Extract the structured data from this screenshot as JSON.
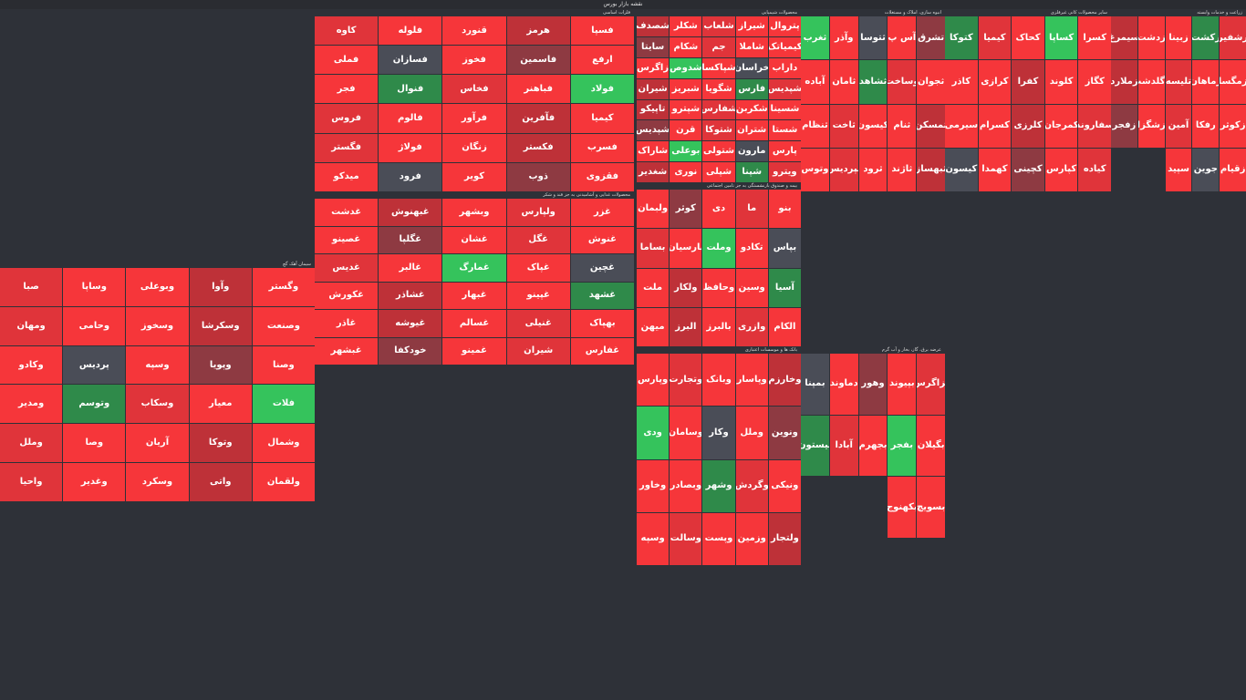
{
  "header": {
    "title": "نقشه بازار بورس"
  },
  "colors": {
    "up": "#35c35c",
    "down": "#f6363a",
    "neutral": "#4a4d57",
    "background": "#2e3138"
  },
  "sectors": [
    {
      "title": "محصولات شیمیایی",
      "cols": 10,
      "rows": 8,
      "tiles": [
        "پتروال",
        "شیراز",
        "شلعاب",
        "شکلر",
        "شصدف",
        "کیمیاتک",
        "شاملا",
        "جم",
        "شکام",
        "سایتا",
        "داراب",
        "خراسان",
        "شپاکسا",
        "شدوص",
        "زاگرس",
        "شپدیس",
        "فارس",
        "شگویا",
        "شبریز",
        "شیران",
        "شسینا",
        "شکربن",
        "شفارس",
        "شپترو",
        "تاپیکو",
        "شستا",
        "شتران",
        "شتوکا",
        "قرن",
        "شپدیس",
        "پارس",
        "مارون",
        "شتولی",
        "بوعلی",
        "شاراک",
        "ویترو",
        "شپنا",
        "شپلی",
        "نوری",
        "شغدیر"
      ]
    },
    {
      "title": "فلزات اساسی",
      "cols": 10,
      "rows": 8,
      "tiles": [
        "فسپا",
        "هرمز",
        "قنورد",
        "فلوله",
        "کاوه",
        "ارفع",
        "فاسمین",
        "فخوز",
        "فسازان",
        "فملی",
        "فولاد",
        "فباهنر",
        "فخاس",
        "فنوال",
        "فجر",
        "کیمیا",
        "فآفرین",
        "فرآور",
        "فالوم",
        "فروس",
        "فسرب",
        "فکستر",
        "زنگان",
        "فولاژ",
        "فگستر",
        "فقزوی",
        "ذوب",
        "کویر",
        "فرود",
        "میدکو"
      ]
    },
    {
      "title": "بیمه و صندوق بازنشستگی به جز تامین اجتماعی",
      "cols": 8,
      "rows": 8,
      "tiles": [
        "بنو",
        "ما",
        "دی",
        "کوثر",
        "ولبمان",
        "بپاس",
        "تکادو",
        "وملت",
        "پارسیان",
        "بساما",
        "آسیا",
        "وسین",
        "وحافظ",
        "ولکار",
        "ملت",
        "الکام",
        "وازری",
        "بالبرز",
        "البرز",
        "میهن"
      ]
    },
    {
      "title": "انبوه سازی، املاک و مستغلات",
      "cols": 8,
      "rows": 8,
      "tiles": [
        "تشرق",
        "آس پ",
        "ثتوسا",
        "وآذر",
        "ثغرب",
        "ثجوان",
        "وساخت",
        "ثشاهد",
        "ثامان",
        "آباده",
        "ثمسکن",
        "ثنام",
        "کیسون",
        "ثاخت",
        "ثنظام",
        "ثبهساز",
        "ثاژند",
        "ثرود",
        "ثپردیس",
        "وتوس"
      ]
    },
    {
      "title": "سایر محصولات کانی غیرفلزی",
      "cols": 8,
      "rows": 8,
      "tiles": [
        "کسرا",
        "کساپا",
        "کحاک",
        "کیمیا",
        "کتوکا",
        "کگاز",
        "کلوند",
        "کفرا",
        "کرازی",
        "کاذر",
        "سفاروند",
        "کمرجان",
        "کلرزی",
        "کسرام",
        "سیرمی",
        "کیاده",
        "کپارس",
        "کچینی",
        "کهمدا",
        "کیسون"
      ]
    },
    {
      "title": "زراعت و خدمات وابسته",
      "cols": 6,
      "rows": 8,
      "tiles": [
        "رشفیر",
        "زکشت",
        "زبینا",
        "زدشت",
        "سیمرغ",
        "زمگسا",
        "زماهان",
        "تلیسه",
        "زگلدشت",
        "زملارد",
        "زکوثر",
        "رفکا",
        "آمین",
        "زشگزا",
        "زفجر",
        "زقیام",
        "جوین",
        "سپید"
      ]
    },
    {
      "title": "سیمان آهک گچ",
      "cols": 10,
      "rows": 8,
      "tiles": [
        "وگستر",
        "وآوا",
        "وبوعلی",
        "وساپا",
        "صبا",
        "وصنعت",
        "وسکرشا",
        "وسخوز",
        "وحامی",
        "ومهان",
        "وصنا",
        "وپویا",
        "وسپه",
        "پردیس",
        "وکادو",
        "فلات",
        "معیار",
        "وسکاب",
        "وتوسم",
        "ومدیر",
        "وشمال",
        "وتوکا",
        "آریان",
        "وصا",
        "وملل",
        "ولقمان",
        "واتی",
        "وسکرد",
        "وغدیر",
        "واحیا"
      ]
    },
    {
      "title": "محصولات غذایی و آشامیدنی به جز قند و شکر",
      "cols": 10,
      "rows": 8,
      "tiles": [
        "غزر",
        "ولپارس",
        "وبشهر",
        "غبهنوش",
        "غدشت",
        "غنوش",
        "غگل",
        "غشان",
        "غگلپا",
        "غصینو",
        "غچین",
        "غپاک",
        "غمارگ",
        "غالبر",
        "غدیس",
        "غشهد",
        "غپینو",
        "غبهار",
        "غشاذر",
        "غکورش",
        "بهپاک",
        "غنیلی",
        "غسالم",
        "غیوشه",
        "غاذر",
        "غفارس",
        "شیران",
        "غمینو",
        "خودکفا",
        "غبشهر"
      ]
    },
    {
      "title": "بانک ها و موسسات اعتباری",
      "cols": 8,
      "rows": 8,
      "tiles": [
        "وخارزم",
        "وپاسار",
        "وبانک",
        "وتجارت",
        "وپارس",
        "ونوین",
        "وملل",
        "وکار",
        "وسامان",
        "ودی",
        "ونیکی",
        "وگردش",
        "وشهر",
        "وبصادر",
        "وخاور",
        "ولتجار",
        "وزمین",
        "وپست",
        "وسالت",
        "وسپه"
      ]
    },
    {
      "title": "عرضه برق، گاز، بخار و آب گرم",
      "cols": 6,
      "rows": 8,
      "tiles": [
        "بزاگرس",
        "بپیوند",
        "وهور",
        "دماوند",
        "بمپنا",
        "بگیلان",
        "بفجر",
        "بجهرم",
        "آبادا",
        "بیستون",
        "بسویچ",
        "بکهنوج"
      ]
    }
  ]
}
